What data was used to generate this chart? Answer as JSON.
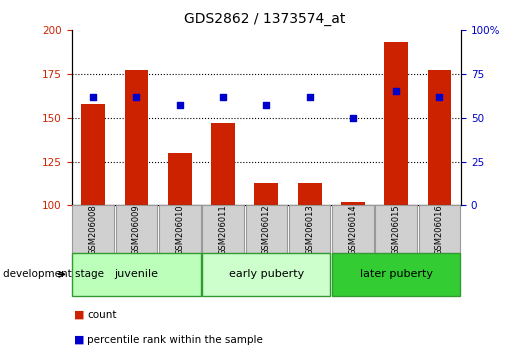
{
  "title": "GDS2862 / 1373574_at",
  "samples": [
    "GSM206008",
    "GSM206009",
    "GSM206010",
    "GSM206011",
    "GSM206012",
    "GSM206013",
    "GSM206014",
    "GSM206015",
    "GSM206016"
  ],
  "count_values": [
    158,
    177,
    130,
    147,
    113,
    113,
    102,
    193,
    177
  ],
  "percentile_values": [
    62,
    62,
    57,
    62,
    57,
    62,
    50,
    65,
    62
  ],
  "bar_color": "#cc2200",
  "dot_color": "#0000cc",
  "ylim_left": [
    100,
    200
  ],
  "ylim_right": [
    0,
    100
  ],
  "yticks_left": [
    100,
    125,
    150,
    175,
    200
  ],
  "yticks_right": [
    0,
    25,
    50,
    75,
    100
  ],
  "ytick_right_labels": [
    "0",
    "25",
    "50",
    "75",
    "100%"
  ],
  "groups": [
    {
      "label": "juvenile",
      "start": 0,
      "end": 3,
      "color": "#bbffbb"
    },
    {
      "label": "early puberty",
      "start": 3,
      "end": 6,
      "color": "#ccffcc"
    },
    {
      "label": "later puberty",
      "start": 6,
      "end": 9,
      "color": "#33cc33"
    }
  ],
  "dev_stage_label": "development stage",
  "legend_count_label": "count",
  "legend_pct_label": "percentile rank within the sample",
  "tick_color_left": "#cc2200",
  "tick_color_right": "#0000cc",
  "label_box_color": "#d0d0d0",
  "label_box_edge": "#999999",
  "group_edge_color": "#339933"
}
